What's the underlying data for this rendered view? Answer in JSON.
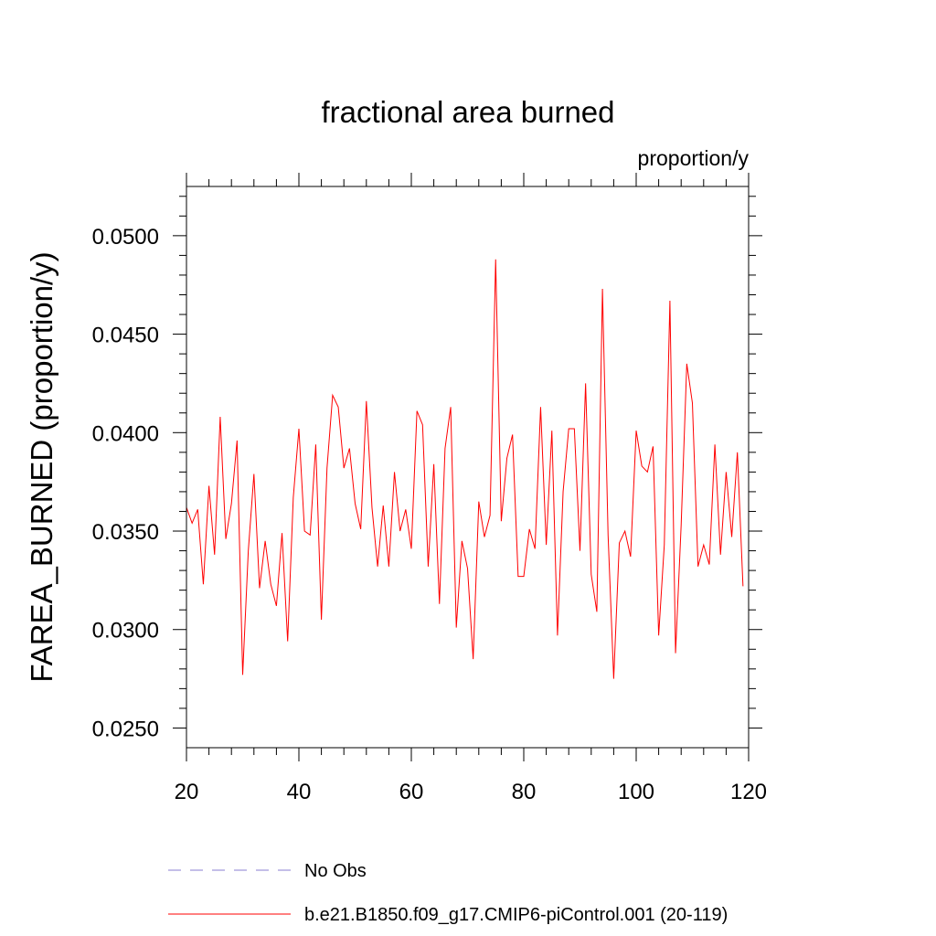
{
  "chart_data": {
    "type": "line",
    "title": "fractional area burned",
    "units_label": "proportion/y",
    "ylabel": "FAREA_BURNED  (proportion/y)",
    "xlabel": "",
    "xlim": [
      20,
      120
    ],
    "ylim": [
      0.024,
      0.0525
    ],
    "xticks": [
      20,
      40,
      60,
      80,
      100,
      120
    ],
    "xtick_labels": [
      "20",
      "40",
      "60",
      "80",
      "100",
      "120"
    ],
    "yticks": [
      0.025,
      0.03,
      0.035,
      0.04,
      0.045,
      0.05
    ],
    "ytick_labels": [
      "0.0250",
      "0.0300",
      "0.0350",
      "0.0400",
      "0.0450",
      "0.0500"
    ],
    "grid": false,
    "legend_position": "bottom",
    "series": [
      {
        "name": "No Obs",
        "color": "#8a7fd0",
        "dash": "dashed",
        "x": [],
        "values": []
      },
      {
        "name": "b.e21.B1850.f09_g17.CMIP6-piControl.001 (20-119)",
        "color": "#ff0000",
        "dash": "solid",
        "x": [
          20,
          21,
          22,
          23,
          24,
          25,
          26,
          27,
          28,
          29,
          30,
          31,
          32,
          33,
          34,
          35,
          36,
          37,
          38,
          39,
          40,
          41,
          42,
          43,
          44,
          45,
          46,
          47,
          48,
          49,
          50,
          51,
          52,
          53,
          54,
          55,
          56,
          57,
          58,
          59,
          60,
          61,
          62,
          63,
          64,
          65,
          66,
          67,
          68,
          69,
          70,
          71,
          72,
          73,
          74,
          75,
          76,
          77,
          78,
          79,
          80,
          81,
          82,
          83,
          84,
          85,
          86,
          87,
          88,
          89,
          90,
          91,
          92,
          93,
          94,
          95,
          96,
          97,
          98,
          99,
          100,
          101,
          102,
          103,
          104,
          105,
          106,
          107,
          108,
          109,
          110,
          111,
          112,
          113,
          114,
          115,
          116,
          117,
          118,
          119
        ],
        "values": [
          0.0362,
          0.0354,
          0.0361,
          0.0323,
          0.0373,
          0.0338,
          0.0408,
          0.0346,
          0.0364,
          0.0396,
          0.0277,
          0.034,
          0.0379,
          0.0321,
          0.0345,
          0.0323,
          0.0312,
          0.0349,
          0.0294,
          0.0367,
          0.0402,
          0.035,
          0.0348,
          0.0394,
          0.0305,
          0.0382,
          0.0419,
          0.0413,
          0.0382,
          0.0392,
          0.0364,
          0.0351,
          0.0416,
          0.0362,
          0.0332,
          0.0363,
          0.0332,
          0.038,
          0.035,
          0.0361,
          0.0341,
          0.0411,
          0.0404,
          0.0332,
          0.0384,
          0.0313,
          0.0392,
          0.0413,
          0.0301,
          0.0345,
          0.0331,
          0.0285,
          0.0365,
          0.0347,
          0.0358,
          0.0488,
          0.0355,
          0.0387,
          0.0399,
          0.0327,
          0.0327,
          0.0351,
          0.0341,
          0.0413,
          0.0343,
          0.0401,
          0.0297,
          0.037,
          0.0402,
          0.0402,
          0.034,
          0.0425,
          0.0328,
          0.0309,
          0.0473,
          0.0348,
          0.0275,
          0.0344,
          0.035,
          0.0337,
          0.0401,
          0.0383,
          0.038,
          0.0393,
          0.0297,
          0.0343,
          0.0467,
          0.0288,
          0.0353,
          0.0435,
          0.0415,
          0.0332,
          0.0343,
          0.0333,
          0.0394,
          0.0338,
          0.038,
          0.0347,
          0.039,
          0.0322
        ]
      }
    ]
  }
}
